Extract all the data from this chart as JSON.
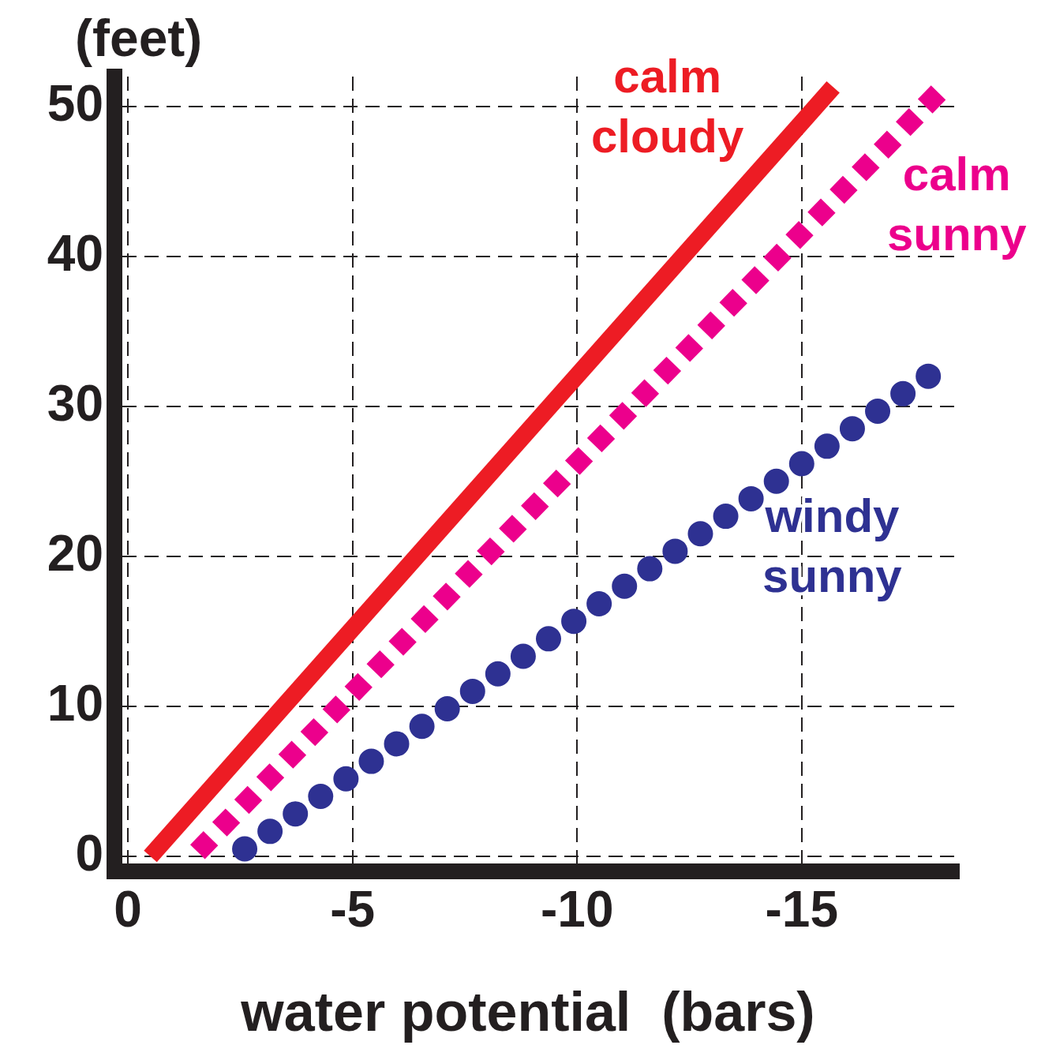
{
  "chart_data": {
    "type": "line",
    "xlabel": "water potential  (bars)",
    "ylabel": "(feet)",
    "xlim": [
      0.3,
      -18.5
    ],
    "ylim": [
      -1,
      52
    ],
    "xticks": [
      0,
      -5,
      -10,
      -15
    ],
    "yticks": [
      0,
      10,
      20,
      30,
      40,
      50
    ],
    "grid": true,
    "legend": false,
    "marker": "none",
    "series": [
      {
        "name": "calm cloudy",
        "color": "#ed1c24",
        "line_style": "solid",
        "x": [
          -0.5,
          -15.7
        ],
        "values": [
          0,
          51.3
        ]
      },
      {
        "name": "calm sunny",
        "color": "#ec008c",
        "line_style": "dashed",
        "x": [
          -1.55,
          -18.1
        ],
        "values": [
          0.3,
          51.1
        ]
      },
      {
        "name": "windy sunny",
        "color": "#2e3192",
        "line_style": "dotted",
        "x": [
          -2.6,
          -18.05
        ],
        "values": [
          0.5,
          32.5
        ]
      }
    ]
  }
}
